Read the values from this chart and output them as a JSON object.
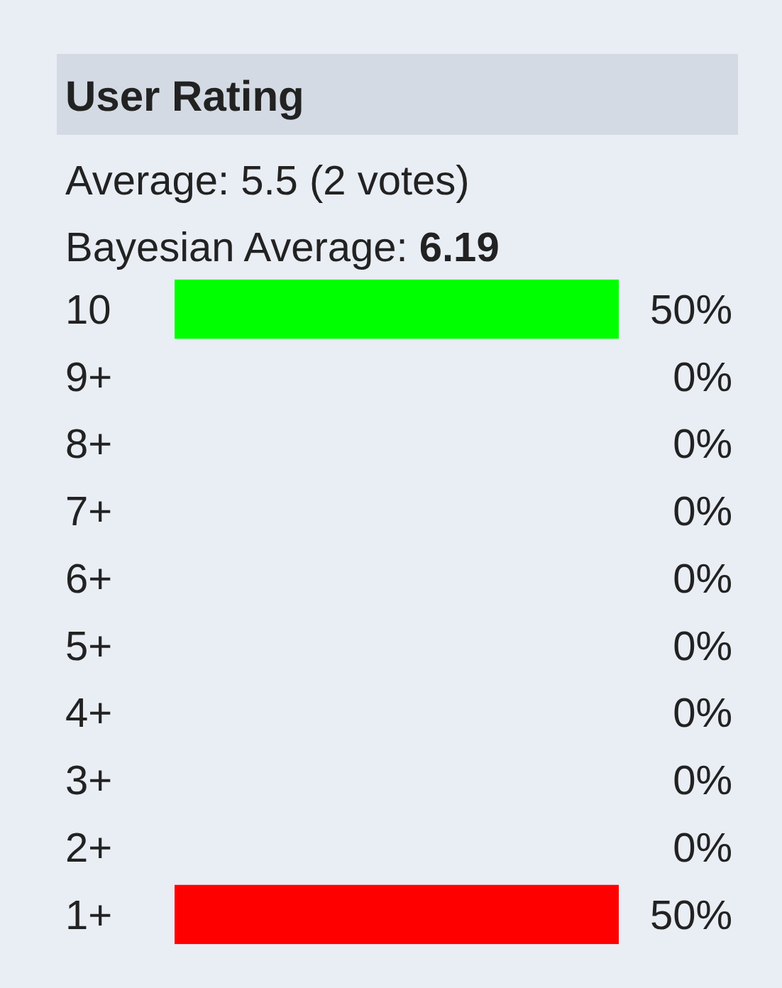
{
  "chart_data": {
    "type": "bar",
    "orientation": "horizontal",
    "title": "User Rating",
    "subtitle": "Average: 5.5 (2 votes)",
    "annotations": [
      "Bayesian Average: 6.19"
    ],
    "categories": [
      "10",
      "9+",
      "8+",
      "7+",
      "6+",
      "5+",
      "4+",
      "3+",
      "2+",
      "1+"
    ],
    "values": [
      50,
      0,
      0,
      0,
      0,
      0,
      0,
      0,
      0,
      50
    ],
    "colors": [
      "#00ff00",
      null,
      null,
      null,
      null,
      null,
      null,
      null,
      null,
      "#ff0000"
    ],
    "value_labels": [
      "50%",
      "0%",
      "0%",
      "0%",
      "0%",
      "0%",
      "0%",
      "0%",
      "0%",
      "50%"
    ]
  }
}
